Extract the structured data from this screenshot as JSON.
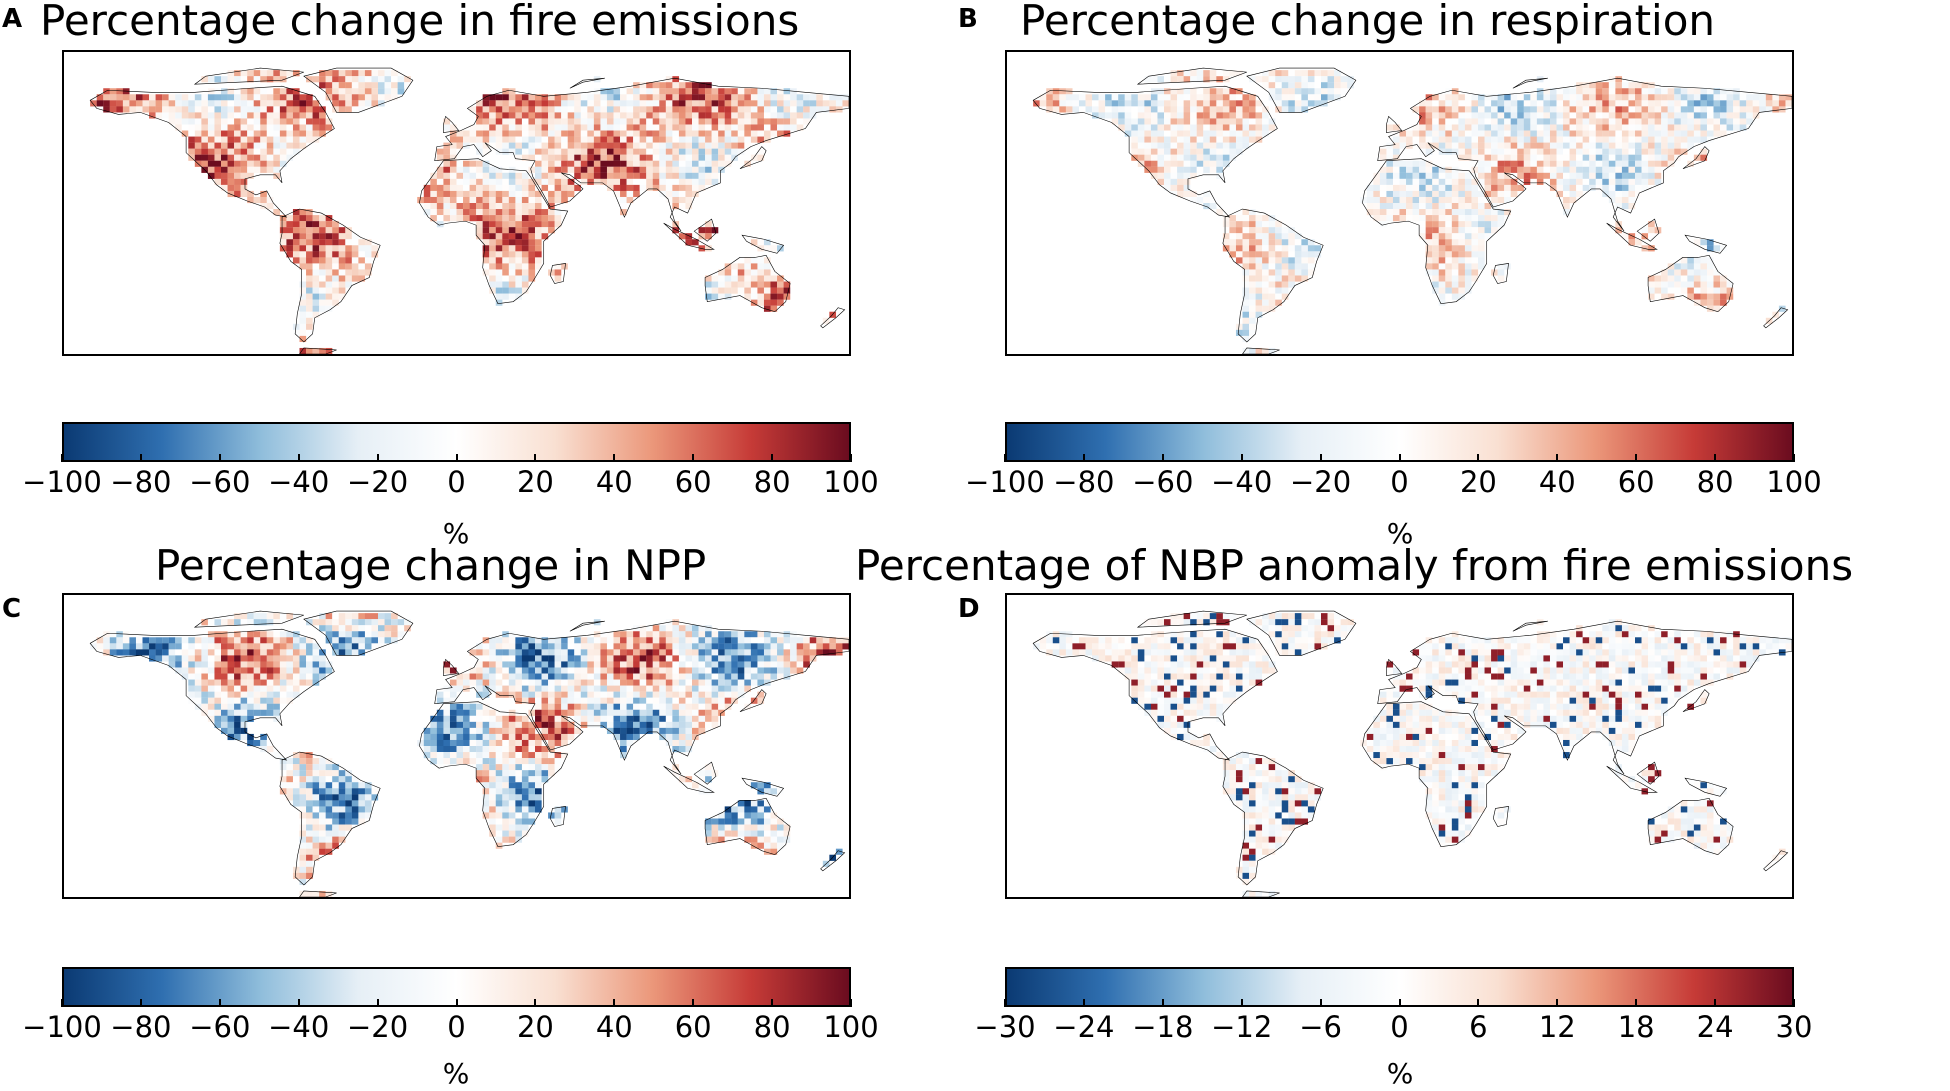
{
  "colormap": {
    "name": "RdBu_r",
    "stops": [
      "#0b3a73",
      "#2f6fb0",
      "#8fbddb",
      "#e6eff6",
      "#ffffff",
      "#f9e0d2",
      "#eb977a",
      "#c63b37",
      "#6b0c1f"
    ]
  },
  "panels": [
    {
      "letter": "A",
      "title": "Percentage change in fire emissions",
      "map_tone": "red",
      "colorbar": {
        "ticks": [
          "−100",
          "−80",
          "−60",
          "−40",
          "−20",
          "0",
          "20",
          "40",
          "60",
          "80",
          "100"
        ],
        "unit": "%"
      }
    },
    {
      "letter": "B",
      "title": "Percentage change in respiration",
      "map_tone": "mixed",
      "colorbar": {
        "ticks": [
          "−100",
          "−80",
          "−60",
          "−40",
          "−20",
          "0",
          "20",
          "40",
          "60",
          "80",
          "100"
        ],
        "unit": "%"
      }
    },
    {
      "letter": "C",
      "title": "Percentage change in NPP",
      "map_tone": "strong",
      "colorbar": {
        "ticks": [
          "−100",
          "−80",
          "−60",
          "−40",
          "−20",
          "0",
          "20",
          "40",
          "60",
          "80",
          "100"
        ],
        "unit": "%"
      }
    },
    {
      "letter": "D",
      "title": "Percentage of NBP anomaly from fire emissions",
      "map_tone": "speckle",
      "colorbar": {
        "ticks": [
          "−30",
          "−24",
          "−18",
          "−12",
          "−6",
          "0",
          "6",
          "12",
          "18",
          "24",
          "30"
        ],
        "unit": "%"
      }
    }
  ]
}
